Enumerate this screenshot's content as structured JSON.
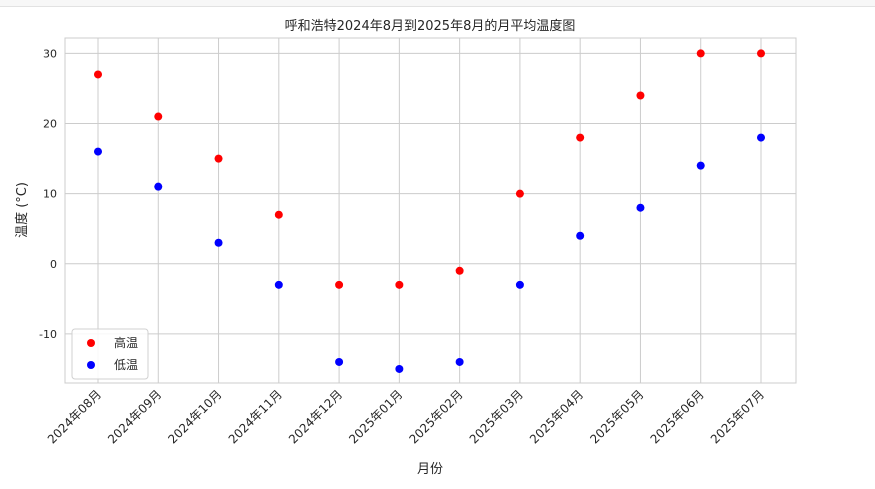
{
  "chart_data": {
    "type": "scatter",
    "title": "呼和浩特2024年8月到2025年8月的月平均温度图",
    "xlabel": "月份",
    "ylabel": "温度 (°C)",
    "categories": [
      "2024年08月",
      "2024年09月",
      "2024年10月",
      "2024年11月",
      "2024年12月",
      "2025年01月",
      "2025年02月",
      "2025年03月",
      "2025年04月",
      "2025年05月",
      "2025年06月",
      "2025年07月"
    ],
    "series": [
      {
        "name": "高温",
        "color": "#ff0000",
        "values": [
          27,
          21,
          15,
          7,
          -3,
          -3,
          -1,
          10,
          18,
          24,
          30,
          30
        ]
      },
      {
        "name": "低温",
        "color": "#0000ff",
        "values": [
          16,
          11,
          3,
          -3,
          -14,
          -15,
          -14,
          -3,
          4,
          8,
          14,
          18
        ]
      }
    ],
    "yticks": [
      -10,
      0,
      10,
      20,
      30
    ],
    "ylim": [
      -17,
      32.2
    ],
    "grid": true,
    "legend_position": "lower-left"
  }
}
